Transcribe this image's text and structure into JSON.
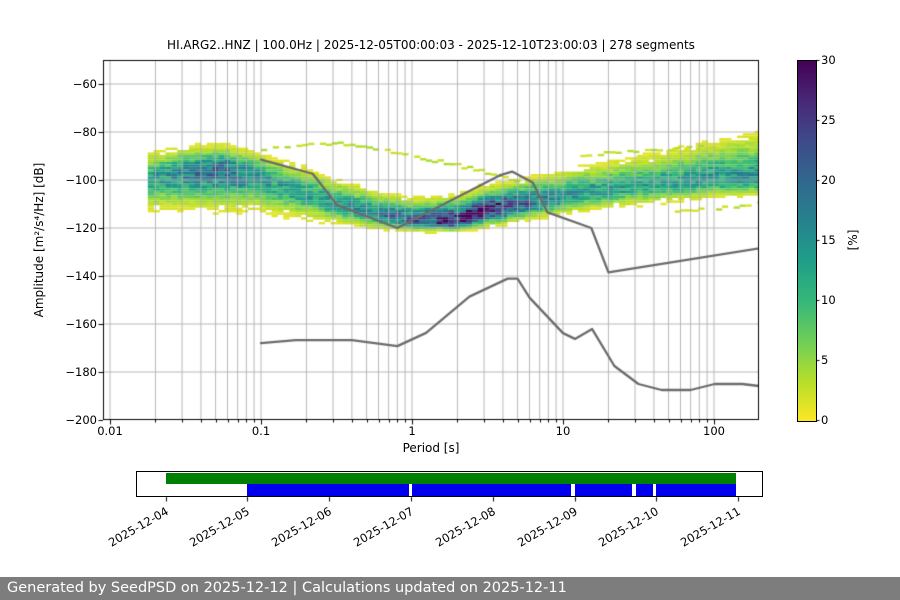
{
  "title": "HI.ARG2..HNZ | 100.0Hz | 2025-12-05T00:00:03 - 2025-12-10T23:00:03 | 278 segments",
  "footer": {
    "text": "Generated by SeedPSD on 2025-12-12 | Calculations updated on 2025-12-11",
    "background": "#7d7d7d",
    "color": "#ffffff"
  },
  "colors": {
    "grid": "#b0b0b0",
    "noise_model_line": "#6b6b6b",
    "spine": "#000000",
    "timeline_green": "#008000",
    "timeline_blue": "#0000ee",
    "plot_background": "#ffffff"
  },
  "chart_data": [
    {
      "type": "heatmap",
      "name": "ppsd-probability-histogram",
      "title": "HI.ARG2..HNZ | 100.0Hz | 2025-12-05T00:00:03 - 2025-12-10T23:00:03 | 278 segments",
      "xlabel": "Period [s]",
      "ylabel": "Amplitude [m²/s⁴/Hz] [dB]",
      "xscale": "log",
      "xlim": [
        0.009,
        200
      ],
      "ylim": [
        -200,
        -50
      ],
      "grid": true,
      "xticks": [
        0.01,
        0.1,
        1,
        10,
        100
      ],
      "xtick_labels": [
        "0.01",
        "0.1",
        "1",
        "10",
        "100"
      ],
      "yticks": [
        -60,
        -80,
        -100,
        -120,
        -140,
        -160,
        -180,
        -200
      ],
      "ytick_labels": [
        "−60",
        "−80",
        "−100",
        "−120",
        "−140",
        "−160",
        "−180",
        "−200"
      ],
      "colorbar": {
        "label": "[%]",
        "min": 0,
        "max": 30,
        "ticks": [
          0,
          5,
          10,
          15,
          20,
          25,
          30
        ],
        "tick_labels": [
          "0",
          "5",
          "10",
          "15",
          "20",
          "25",
          "30"
        ],
        "colormap": "viridis_r",
        "stops": [
          "#440154",
          "#482878",
          "#3e4a89",
          "#31688e",
          "#26828e",
          "#1f9e89",
          "#35b779",
          "#6ece58",
          "#b5de2b",
          "#fde725"
        ]
      },
      "ppsd_distribution": [
        {
          "period": 0.018,
          "mode_db": -100.0,
          "upper_db": -88.0,
          "lower_db": -113.0,
          "peak_percent": 13
        },
        {
          "period": 0.03,
          "mode_db": -97.5,
          "upper_db": -86.0,
          "lower_db": -112.0,
          "peak_percent": 16
        },
        {
          "period": 0.055,
          "mode_db": -95.5,
          "upper_db": -85.5,
          "lower_db": -112.0,
          "peak_percent": 20
        },
        {
          "period": 0.09,
          "mode_db": -98.0,
          "upper_db": -88.0,
          "lower_db": -113.0,
          "peak_percent": 15
        },
        {
          "period": 0.15,
          "mode_db": -103.5,
          "upper_db": -92.0,
          "lower_db": -115.5,
          "peak_percent": 13
        },
        {
          "period": 0.3,
          "mode_db": -109.5,
          "upper_db": -99.0,
          "lower_db": -118.5,
          "peak_percent": 13
        },
        {
          "period": 0.6,
          "mode_db": -114.5,
          "upper_db": -105.0,
          "lower_db": -120.5,
          "peak_percent": 17
        },
        {
          "period": 1.0,
          "mode_db": -117.0,
          "upper_db": -108.0,
          "lower_db": -121.5,
          "peak_percent": 22
        },
        {
          "period": 2.0,
          "mode_db": -117.5,
          "upper_db": -107.0,
          "lower_db": -121.5,
          "peak_percent": 28
        },
        {
          "period": 3.0,
          "mode_db": -113.0,
          "upper_db": -103.5,
          "lower_db": -119.5,
          "peak_percent": 30
        },
        {
          "period": 5.0,
          "mode_db": -110.5,
          "upper_db": -100.5,
          "lower_db": -117.5,
          "peak_percent": 22
        },
        {
          "period": 8.0,
          "mode_db": -108.0,
          "upper_db": -97.5,
          "lower_db": -115.5,
          "peak_percent": 16
        },
        {
          "period": 13.0,
          "mode_db": -105.5,
          "upper_db": -94.5,
          "lower_db": -113.5,
          "peak_percent": 14
        },
        {
          "period": 25.0,
          "mode_db": -103.5,
          "upper_db": -91.0,
          "lower_db": -111.5,
          "peak_percent": 13
        },
        {
          "period": 50.0,
          "mode_db": -101.5,
          "upper_db": -87.5,
          "lower_db": -109.5,
          "peak_percent": 13
        },
        {
          "period": 100.0,
          "mode_db": -100.0,
          "upper_db": -83.5,
          "lower_db": -108.0,
          "peak_percent": 14
        },
        {
          "period": 198.0,
          "mode_db": -99.5,
          "upper_db": -80.5,
          "lower_db": -107.0,
          "peak_percent": 15
        }
      ],
      "transient_traces": [
        {
          "points": [
            [
              0.1,
              -87.5
            ],
            [
              0.18,
              -85.2
            ],
            [
              0.3,
              -84.8
            ],
            [
              0.55,
              -87.0
            ],
            [
              1.0,
              -90.5
            ],
            [
              1.8,
              -93.5
            ],
            [
              3.2,
              -97.5
            ],
            [
              4.8,
              -100.5
            ]
          ]
        },
        {
          "points": [
            [
              13,
              -89.5
            ],
            [
              25,
              -88.0
            ],
            [
              50,
              -87.2
            ],
            [
              100,
              -86.0
            ],
            [
              198,
              -84.5
            ]
          ]
        },
        {
          "points": [
            [
              55,
              -113.0
            ],
            [
              100,
              -112.0
            ],
            [
              150,
              -110.5
            ],
            [
              198,
              -110.0
            ]
          ]
        }
      ],
      "noise_models": {
        "nhnm": [
          [
            0.1,
            -91.5
          ],
          [
            0.22,
            -97.4
          ],
          [
            0.32,
            -110.5
          ],
          [
            0.8,
            -120.0
          ],
          [
            3.8,
            -98.1
          ],
          [
            4.6,
            -96.5
          ],
          [
            6.3,
            -101.0
          ],
          [
            7.9,
            -113.5
          ],
          [
            15.4,
            -120.0
          ],
          [
            20.0,
            -138.5
          ],
          [
            354.8,
            -126.0
          ]
        ],
        "nlnm": [
          [
            0.1,
            -168.0
          ],
          [
            0.17,
            -166.7
          ],
          [
            0.4,
            -166.7
          ],
          [
            0.8,
            -169.2
          ],
          [
            1.24,
            -163.7
          ],
          [
            2.4,
            -148.6
          ],
          [
            4.3,
            -141.1
          ],
          [
            5.0,
            -141.1
          ],
          [
            6.0,
            -149.0
          ],
          [
            10.0,
            -163.8
          ],
          [
            12.0,
            -166.2
          ],
          [
            15.6,
            -162.1
          ],
          [
            21.9,
            -177.5
          ],
          [
            31.6,
            -185.0
          ],
          [
            45.0,
            -187.5
          ],
          [
            70.0,
            -187.5
          ],
          [
            101.0,
            -185.0
          ],
          [
            154.0,
            -185.0
          ],
          [
            328.0,
            -187.5
          ]
        ]
      }
    },
    {
      "type": "availability-timeline",
      "name": "data-coverage-timeline",
      "tick_dates": [
        "2025-12-04",
        "2025-12-05",
        "2025-12-06",
        "2025-12-07",
        "2025-12-08",
        "2025-12-09",
        "2025-12-10",
        "2025-12-11"
      ],
      "rows": [
        {
          "name": "processed-coverage",
          "color": "#008000",
          "segments": [
            {
              "start": "2025-12-04T00:00",
              "end": "2025-12-10T23:30"
            }
          ]
        },
        {
          "name": "waveform-availability",
          "color": "#0000ee",
          "segments": [
            {
              "start": "2025-12-05T00:00",
              "end": "2025-12-06T23:30"
            },
            {
              "start": "2025-12-07T00:20",
              "end": "2025-12-08T23:00"
            },
            {
              "start": "2025-12-09T00:00",
              "end": "2025-12-09T17:00"
            },
            {
              "start": "2025-12-09T18:00",
              "end": "2025-12-09T23:00"
            },
            {
              "start": "2025-12-10T00:00",
              "end": "2025-12-10T23:30"
            }
          ]
        }
      ]
    }
  ]
}
